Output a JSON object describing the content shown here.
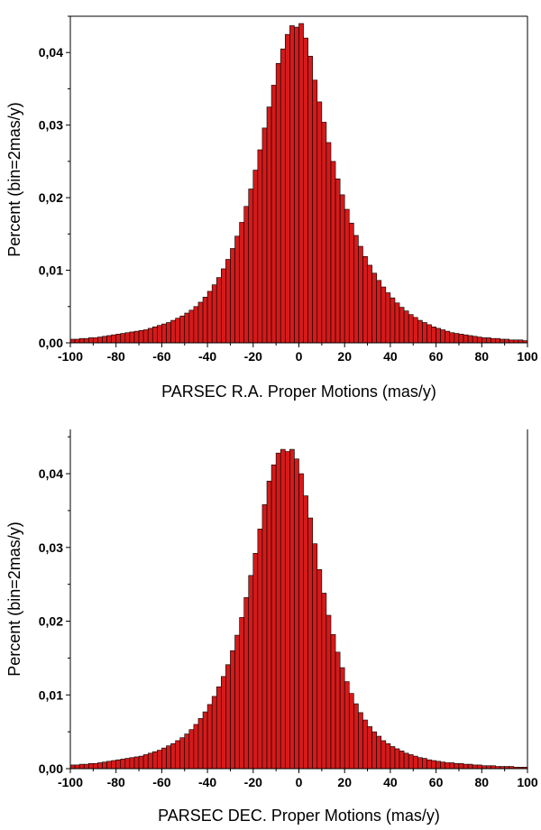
{
  "colors": {
    "bar_fill": "#d41a1a",
    "bar_stroke": "#000000",
    "axis": "#000000"
  },
  "chart_data": [
    {
      "type": "bar",
      "xlabel": "PARSEC R.A. Proper Motions (mas/y)",
      "ylabel": "Percent (bin=2mas/y)",
      "xlim": [
        -100,
        100
      ],
      "ylim": [
        0,
        0.045
      ],
      "xticks": [
        -100,
        -80,
        -60,
        -40,
        -20,
        0,
        20,
        40,
        60,
        80,
        100
      ],
      "xtick_labels": [
        "-100",
        "-80",
        "-60",
        "-40",
        "-20",
        "0",
        "20",
        "40",
        "60",
        "80",
        "100"
      ],
      "yticks": [
        0,
        0.01,
        0.02,
        0.03,
        0.04
      ],
      "ytick_labels": [
        "0,00",
        "0,01",
        "0,02",
        "0,03",
        "0,04"
      ],
      "bin_width": 2,
      "x": [
        -99,
        -97,
        -95,
        -93,
        -91,
        -89,
        -87,
        -85,
        -83,
        -81,
        -79,
        -77,
        -75,
        -73,
        -71,
        -69,
        -67,
        -65,
        -63,
        -61,
        -59,
        -57,
        -55,
        -53,
        -51,
        -49,
        -47,
        -45,
        -43,
        -41,
        -39,
        -37,
        -35,
        -33,
        -31,
        -29,
        -27,
        -25,
        -23,
        -21,
        -19,
        -17,
        -15,
        -13,
        -11,
        -9,
        -7,
        -5,
        -3,
        -1,
        1,
        3,
        5,
        7,
        9,
        11,
        13,
        15,
        17,
        19,
        21,
        23,
        25,
        27,
        29,
        31,
        33,
        35,
        37,
        39,
        41,
        43,
        45,
        47,
        49,
        51,
        53,
        55,
        57,
        59,
        61,
        63,
        65,
        67,
        69,
        71,
        73,
        75,
        77,
        79,
        81,
        83,
        85,
        87,
        89,
        91,
        93,
        95,
        97,
        99
      ],
      "values": [
        0.0005,
        0.0005,
        0.0006,
        0.0006,
        0.0007,
        0.0007,
        0.0008,
        0.0009,
        0.001,
        0.0011,
        0.0012,
        0.0013,
        0.0014,
        0.0015,
        0.0016,
        0.0017,
        0.0018,
        0.002,
        0.0022,
        0.0024,
        0.0026,
        0.0028,
        0.0031,
        0.0034,
        0.0037,
        0.0041,
        0.0045,
        0.005,
        0.0056,
        0.0063,
        0.0071,
        0.008,
        0.009,
        0.0102,
        0.0115,
        0.013,
        0.0147,
        0.0166,
        0.0188,
        0.0212,
        0.0238,
        0.0266,
        0.0296,
        0.0325,
        0.0355,
        0.0385,
        0.0405,
        0.0425,
        0.0437,
        0.0435,
        0.044,
        0.042,
        0.0395,
        0.0362,
        0.0332,
        0.0304,
        0.0276,
        0.025,
        0.0226,
        0.0204,
        0.0184,
        0.0165,
        0.0148,
        0.0133,
        0.0119,
        0.0107,
        0.0096,
        0.0086,
        0.0077,
        0.0069,
        0.0062,
        0.0055,
        0.0049,
        0.0044,
        0.0039,
        0.0035,
        0.0031,
        0.0028,
        0.0025,
        0.0022,
        0.002,
        0.0018,
        0.0016,
        0.0014,
        0.0013,
        0.0012,
        0.0011,
        0.001,
        0.0009,
        0.0008,
        0.0007,
        0.0007,
        0.0006,
        0.0006,
        0.0005,
        0.0005,
        0.0004,
        0.0004,
        0.0004,
        0.0003
      ]
    },
    {
      "type": "bar",
      "xlabel": "PARSEC DEC. Proper Motions (mas/y)",
      "ylabel": "Percent (bin=2mas/y)",
      "xlim": [
        -100,
        100
      ],
      "ylim": [
        0,
        0.046
      ],
      "xticks": [
        -100,
        -80,
        -60,
        -40,
        -20,
        0,
        20,
        40,
        60,
        80,
        100
      ],
      "xtick_labels": [
        "-100",
        "-80",
        "-60",
        "-40",
        "-20",
        "0",
        "20",
        "40",
        "60",
        "80",
        "100"
      ],
      "yticks": [
        0,
        0.01,
        0.02,
        0.03,
        0.04
      ],
      "ytick_labels": [
        "0,00",
        "0,01",
        "0,02",
        "0,03",
        "0,04"
      ],
      "bin_width": 2,
      "x": [
        -99,
        -97,
        -95,
        -93,
        -91,
        -89,
        -87,
        -85,
        -83,
        -81,
        -79,
        -77,
        -75,
        -73,
        -71,
        -69,
        -67,
        -65,
        -63,
        -61,
        -59,
        -57,
        -55,
        -53,
        -51,
        -49,
        -47,
        -45,
        -43,
        -41,
        -39,
        -37,
        -35,
        -33,
        -31,
        -29,
        -27,
        -25,
        -23,
        -21,
        -19,
        -17,
        -15,
        -13,
        -11,
        -9,
        -7,
        -5,
        -3,
        -1,
        1,
        3,
        5,
        7,
        9,
        11,
        13,
        15,
        17,
        19,
        21,
        23,
        25,
        27,
        29,
        31,
        33,
        35,
        37,
        39,
        41,
        43,
        45,
        47,
        49,
        51,
        53,
        55,
        57,
        59,
        61,
        63,
        65,
        67,
        69,
        71,
        73,
        75,
        77,
        79,
        81,
        83,
        85,
        87,
        89,
        91,
        93,
        95,
        97,
        99
      ],
      "values": [
        0.0005,
        0.0005,
        0.0006,
        0.0006,
        0.0007,
        0.0007,
        0.0008,
        0.0009,
        0.001,
        0.0011,
        0.0012,
        0.0013,
        0.0014,
        0.0015,
        0.0016,
        0.0017,
        0.0019,
        0.0021,
        0.0023,
        0.0025,
        0.0028,
        0.0031,
        0.0034,
        0.0038,
        0.0042,
        0.0047,
        0.0053,
        0.006,
        0.0068,
        0.0077,
        0.0087,
        0.0098,
        0.0111,
        0.0125,
        0.0141,
        0.016,
        0.0181,
        0.0205,
        0.0232,
        0.0262,
        0.0292,
        0.0325,
        0.0358,
        0.039,
        0.0412,
        0.0428,
        0.0433,
        0.043,
        0.0433,
        0.042,
        0.04,
        0.037,
        0.034,
        0.0305,
        0.027,
        0.0238,
        0.0208,
        0.0182,
        0.0158,
        0.0137,
        0.0118,
        0.0102,
        0.0088,
        0.0076,
        0.0066,
        0.0057,
        0.005,
        0.0044,
        0.0038,
        0.0034,
        0.003,
        0.0027,
        0.0024,
        0.0021,
        0.0019,
        0.0017,
        0.0015,
        0.0014,
        0.0012,
        0.0011,
        0.001,
        0.0009,
        0.0008,
        0.0008,
        0.0007,
        0.0007,
        0.0006,
        0.0006,
        0.0005,
        0.0005,
        0.0004,
        0.0004,
        0.0004,
        0.0003,
        0.0003,
        0.0003,
        0.0003,
        0.0002,
        0.0002,
        0.0002
      ]
    }
  ]
}
